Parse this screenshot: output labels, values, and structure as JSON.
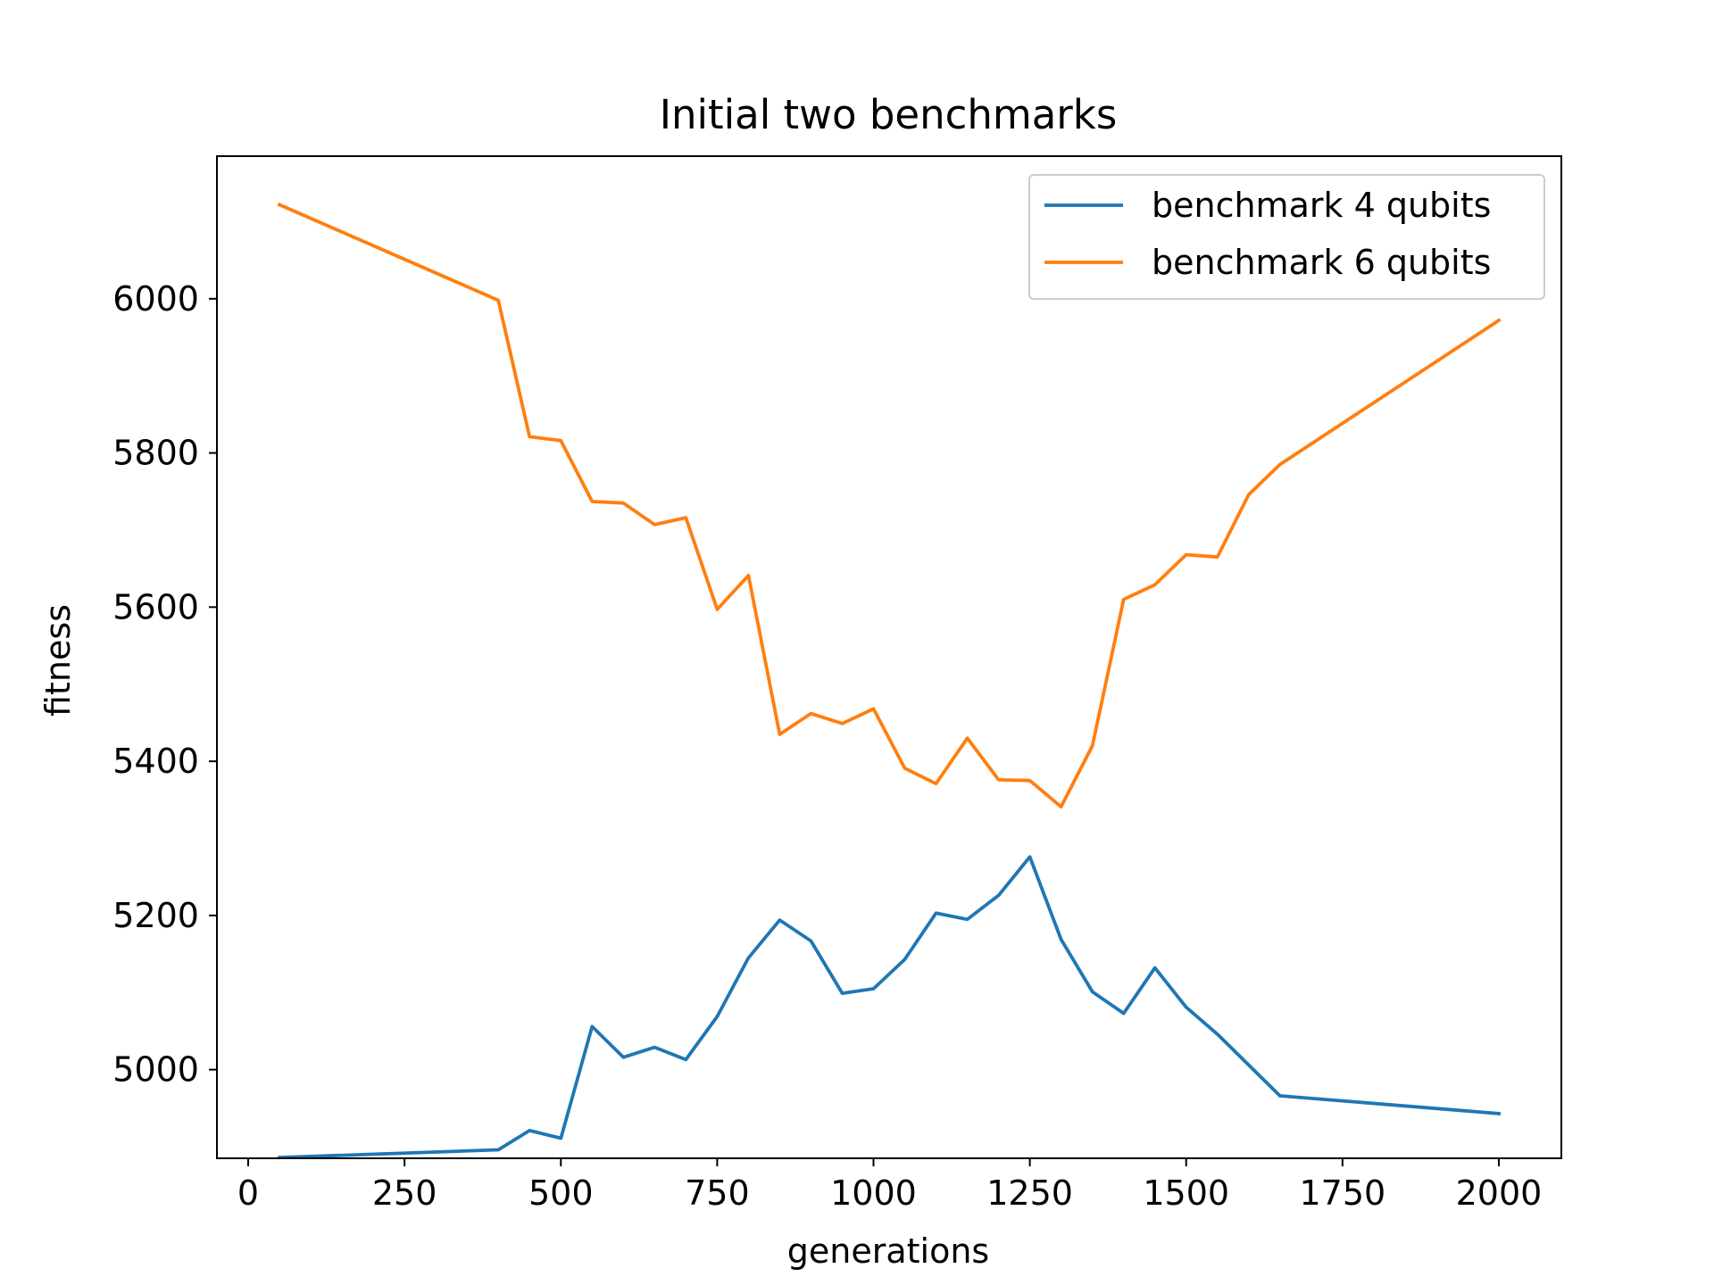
{
  "chart_data": {
    "type": "line",
    "title": "Initial two benchmarks",
    "xlabel": "generations",
    "ylabel": "fitness",
    "xlim": [
      -50,
      2100
    ],
    "ylim": [
      4885,
      6185
    ],
    "xticks": [
      0,
      250,
      500,
      750,
      1000,
      1250,
      1500,
      1750,
      2000
    ],
    "yticks": [
      5000,
      5200,
      5400,
      5600,
      5800,
      6000
    ],
    "grid": false,
    "legend_position": "top-right",
    "series": [
      {
        "name": "benchmark 4 qubits",
        "color": "#1f77b4",
        "x": [
          50,
          400,
          450,
          500,
          550,
          600,
          650,
          700,
          750,
          800,
          850,
          900,
          950,
          1000,
          1050,
          1100,
          1150,
          1200,
          1250,
          1300,
          1350,
          1400,
          1450,
          1500,
          1550,
          1600,
          1650,
          2000
        ],
        "y": [
          4886,
          4896,
          4921,
          4911,
          5056,
          5016,
          5029,
          5013,
          5069,
          5145,
          5194,
          5167,
          5099,
          5105,
          5143,
          5203,
          5195,
          5226,
          5276,
          5169,
          5101,
          5073,
          5132,
          5081,
          5046,
          5006,
          4966,
          4943
        ]
      },
      {
        "name": "benchmark 6 qubits",
        "color": "#ff7f0e",
        "x": [
          50,
          400,
          450,
          500,
          550,
          600,
          650,
          700,
          750,
          800,
          850,
          900,
          950,
          1000,
          1050,
          1100,
          1150,
          1200,
          1250,
          1300,
          1350,
          1400,
          1450,
          1500,
          1550,
          1600,
          1650,
          2000
        ],
        "y": [
          6122,
          5998,
          5821,
          5816,
          5737,
          5735,
          5707,
          5716,
          5597,
          5641,
          5435,
          5462,
          5449,
          5468,
          5391,
          5371,
          5430,
          5376,
          5375,
          5341,
          5420,
          5610,
          5629,
          5668,
          5665,
          5746,
          5785,
          5972
        ]
      }
    ]
  }
}
